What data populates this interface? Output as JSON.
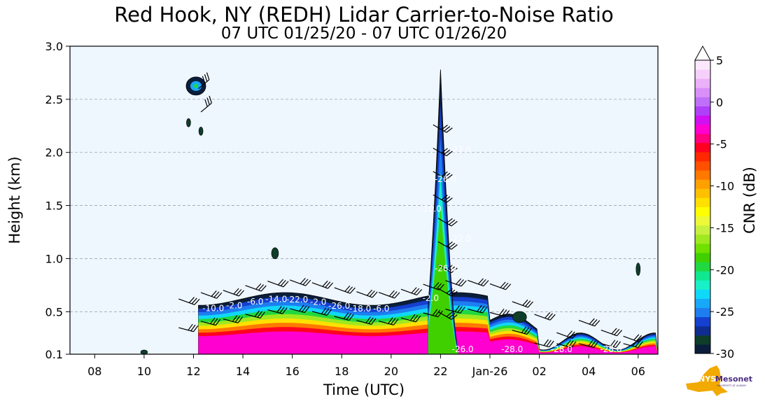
{
  "chart_data": {
    "type": "heatmap",
    "title": "Red Hook, NY (REDH) Lidar Carrier-to-Noise Ratio",
    "subtitle": "07 UTC 01/25/20 - 07 UTC 01/26/20",
    "xlabel": "Time (UTC)",
    "ylabel": "Height (km)",
    "x_ticks": [
      "08",
      "10",
      "12",
      "14",
      "16",
      "18",
      "20",
      "22",
      "Jan-26",
      "02",
      "04",
      "06"
    ],
    "x_tick_hours": [
      8,
      10,
      12,
      14,
      16,
      18,
      20,
      22,
      24,
      26,
      28,
      30
    ],
    "xlim_hours": [
      7,
      30.8
    ],
    "y_ticks": [
      "0.1",
      "0.5",
      "1.0",
      "1.5",
      "2.0",
      "2.5",
      "3.0"
    ],
    "y_tick_values": [
      0.1,
      0.5,
      1.0,
      1.5,
      2.0,
      2.5,
      3.0
    ],
    "ylim": [
      0.1,
      3.0
    ],
    "grid": "horizontal dashed",
    "colorbar": {
      "label": "CNR (dB)",
      "ticks": [
        "5",
        "0",
        "-5",
        "-10",
        "-15",
        "-20",
        "-25",
        "-30"
      ],
      "tick_values": [
        5,
        0,
        -5,
        -10,
        -15,
        -20,
        -25,
        -30
      ],
      "range": [
        -30,
        5
      ],
      "extend": "max",
      "colors": [
        "#0a1e3c",
        "#0e3d2a",
        "#0f2d90",
        "#1540d0",
        "#1e7ef0",
        "#18a8f8",
        "#10d8f8",
        "#18f0c8",
        "#10e890",
        "#20d840",
        "#40d000",
        "#70e000",
        "#a0e820",
        "#c8f040",
        "#ecf838",
        "#ffff00",
        "#ffe000",
        "#ffc000",
        "#ffa000",
        "#ff7800",
        "#ff5000",
        "#ff2800",
        "#ff0020",
        "#ff0080",
        "#ff00d0",
        "#d010f0",
        "#b040f8",
        "#c070f8",
        "#d890f8",
        "#eab0f8",
        "#f6d0fa",
        "#fce8fc"
      ]
    },
    "regions": [
      {
        "name": "boundary-layer",
        "start_hour": 12.2,
        "end_hour": 30.8,
        "base_km": 0.1,
        "top_km": 0.72,
        "peak_cnr": -3
      },
      {
        "name": "plume",
        "start_hour": 21.5,
        "end_hour": 23.0,
        "base_km": 0.1,
        "top_km": 2.78,
        "peak_cnr": -18
      },
      {
        "name": "cloud-fragment",
        "start_hour": 11.7,
        "end_hour": 12.5,
        "base_km": 2.55,
        "top_km": 2.7,
        "peak_cnr": -20
      }
    ],
    "contour_labels": [
      "-10.0",
      "-2.0",
      "-6.0",
      "-14.0",
      "-22.0",
      "-2.0",
      "-26.0",
      "-18.0",
      "-6.0",
      "-2.0",
      "-26.0",
      "-22.0",
      "-10.0",
      "-26.0",
      "-22.0",
      "-26.0",
      "-28.0",
      "-28.0",
      "-28.0"
    ],
    "background_color": "#eef6fe"
  },
  "logo": {
    "text": "NYS",
    "brand": "Mesonet",
    "sub": "UNIVERSITY AT ALBANY",
    "color_gold": "#f2a900",
    "color_purple": "#4b2e83"
  }
}
